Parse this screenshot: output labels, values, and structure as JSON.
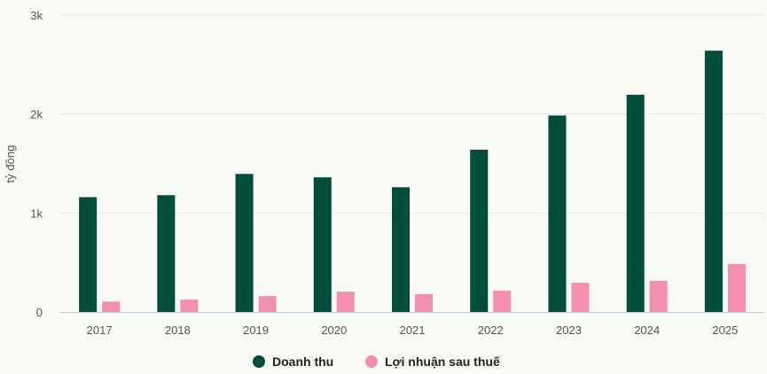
{
  "colors": {
    "background": "#f8fbf4",
    "grid": "#e3e6e1",
    "axis": "#c6cbd4"
  },
  "chart_data": {
    "type": "bar",
    "title": "",
    "xlabel": "",
    "ylabel": "tỷ đồng",
    "categories": [
      "2017",
      "2018",
      "2019",
      "2020",
      "2021",
      "2022",
      "2023",
      "2024",
      "2025"
    ],
    "series": [
      {
        "name": "Doanh thu",
        "color": "#004d3c",
        "values": [
          1160,
          1180,
          1395,
          1360,
          1260,
          1640,
          1985,
          2195,
          2640
        ]
      },
      {
        "name": "Lợi nhuận sau thuế",
        "color": "#f48fb1",
        "values": [
          105,
          125,
          160,
          205,
          180,
          215,
          295,
          315,
          485
        ]
      }
    ],
    "ylim": [
      0,
      3000
    ],
    "yticks": [
      {
        "value": 0,
        "label": "0"
      },
      {
        "value": 1000,
        "label": "1k"
      },
      {
        "value": 2000,
        "label": "2k"
      },
      {
        "value": 3000,
        "label": "3k"
      }
    ],
    "grid": true,
    "legend": "bottom-center"
  }
}
